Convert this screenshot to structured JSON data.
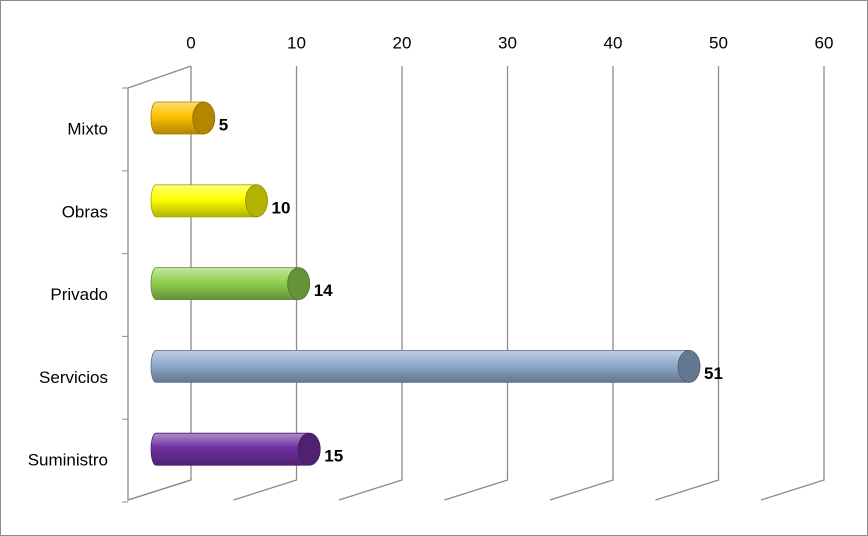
{
  "chart_data": {
    "type": "bar3d",
    "categories": [
      "Mixto",
      "Obras",
      "Privado",
      "Servicios",
      "Suministro"
    ],
    "values": [
      5,
      10,
      14,
      51,
      15
    ],
    "colors": [
      "#ffc000",
      "#ffff00",
      "#92d050",
      "#8eaacb",
      "#7030a0"
    ],
    "xlim": [
      0,
      60
    ],
    "xticks": [
      0,
      10,
      20,
      30,
      40,
      50,
      60
    ],
    "grid": true
  }
}
